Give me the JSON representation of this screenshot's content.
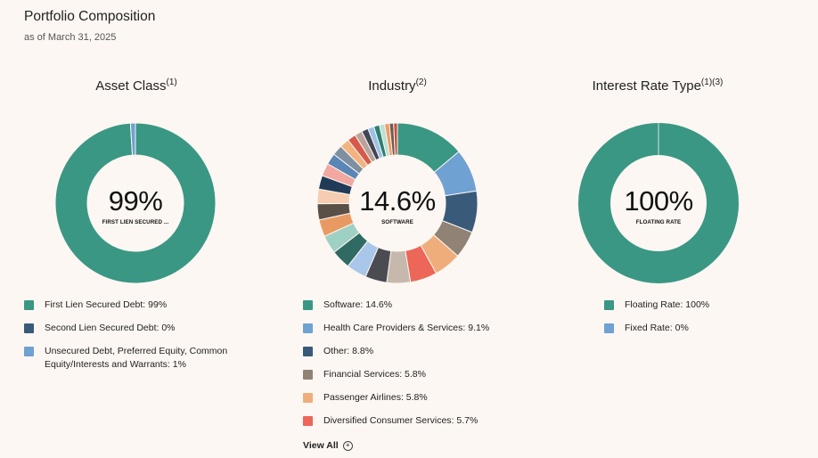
{
  "header": {
    "title": "Portfolio Composition",
    "subtitle": "as of March 31, 2025"
  },
  "colors": {
    "background": "#fcf7f2",
    "accent_green": "#3a9784"
  },
  "view_all": {
    "label": "View All",
    "icon": "plus-circle-icon"
  },
  "chart_data": [
    {
      "type": "pie",
      "donut": true,
      "title": "Asset Class",
      "title_sup": "(1)",
      "center_value": "99%",
      "center_label": "FIRST LIEN SECURED ...",
      "series": [
        {
          "name": "First Lien Secured Debt",
          "value": 99,
          "color": "#3a9784",
          "legend": "First Lien Secured Debt: 99%"
        },
        {
          "name": "Second Lien Secured Debt",
          "value": 0,
          "color": "#3a5a7a",
          "legend": "Second Lien Secured Debt: 0%"
        },
        {
          "name": "Unsecured Debt, Preferred Equity, Common Equity/Interests and Warrants",
          "value": 1,
          "color": "#6fa1d2",
          "legend": "Unsecured Debt, Preferred Equity, Common Equity/Interests and Warrants: 1%"
        }
      ]
    },
    {
      "type": "pie",
      "donut": true,
      "title": "Industry",
      "title_sup": "(2)",
      "center_value": "14.6%",
      "center_label": "SOFTWARE",
      "series": [
        {
          "name": "Software",
          "value": 14.6,
          "color": "#3a9784",
          "legend": "Software: 14.6%"
        },
        {
          "name": "Health Care Providers & Services",
          "value": 9.1,
          "color": "#6fa1d2",
          "legend": "Health Care Providers & Services: 9.1%"
        },
        {
          "name": "Other",
          "value": 8.8,
          "color": "#3a5a7a",
          "legend": "Other: 8.8%"
        },
        {
          "name": "Financial Services",
          "value": 5.8,
          "color": "#918276",
          "legend": "Financial Services: 5.8%"
        },
        {
          "name": "Passenger Airlines",
          "value": 5.8,
          "color": "#f0ad7c",
          "legend": "Passenger Airlines: 5.8%"
        },
        {
          "name": "Diversified Consumer Services",
          "value": 5.7,
          "color": "#ec6758",
          "legend": "Diversified Consumer Services: 5.7%"
        },
        {
          "name": "",
          "value": 5.0,
          "color": "#c7b8ad"
        },
        {
          "name": "",
          "value": 4.6,
          "color": "#4b4b52"
        },
        {
          "name": "",
          "value": 4.3,
          "color": "#a9c7ea"
        },
        {
          "name": "",
          "value": 4.1,
          "color": "#2f6b62"
        },
        {
          "name": "",
          "value": 3.9,
          "color": "#9fd0c4"
        },
        {
          "name": "",
          "value": 3.6,
          "color": "#e99a63"
        },
        {
          "name": "",
          "value": 3.4,
          "color": "#5a5047"
        },
        {
          "name": "",
          "value": 3.1,
          "color": "#f6cdb0"
        },
        {
          "name": "",
          "value": 2.9,
          "color": "#213a57"
        },
        {
          "name": "",
          "value": 2.7,
          "color": "#f2a7a0"
        },
        {
          "name": "",
          "value": 2.4,
          "color": "#5a86b7"
        },
        {
          "name": "",
          "value": 2.2,
          "color": "#7d8fa0"
        },
        {
          "name": "",
          "value": 2.0,
          "color": "#f3b37f"
        },
        {
          "name": "",
          "value": 1.8,
          "color": "#d65a4c"
        },
        {
          "name": "",
          "value": 1.6,
          "color": "#b8a49a"
        },
        {
          "name": "",
          "value": 1.4,
          "color": "#414656"
        },
        {
          "name": "",
          "value": 1.3,
          "color": "#9bc2e6"
        },
        {
          "name": "",
          "value": 1.2,
          "color": "#2e7f71"
        },
        {
          "name": "",
          "value": 1.1,
          "color": "#b9e0d5"
        },
        {
          "name": "",
          "value": 1.0,
          "color": "#ef9b66"
        },
        {
          "name": "",
          "value": 0.9,
          "color": "#6e5d50"
        },
        {
          "name": "",
          "value": 0.8,
          "color": "#c84a3c"
        }
      ]
    },
    {
      "type": "pie",
      "donut": true,
      "title": "Interest Rate Type",
      "title_sup": "(1)(3)",
      "center_value": "100%",
      "center_label": "FLOATING RATE",
      "series": [
        {
          "name": "Floating Rate",
          "value": 100,
          "color": "#3a9784",
          "legend": "Floating Rate: 100%"
        },
        {
          "name": "Fixed Rate",
          "value": 0,
          "color": "#6fa1d2",
          "legend": "Fixed Rate: 0%"
        }
      ]
    }
  ]
}
